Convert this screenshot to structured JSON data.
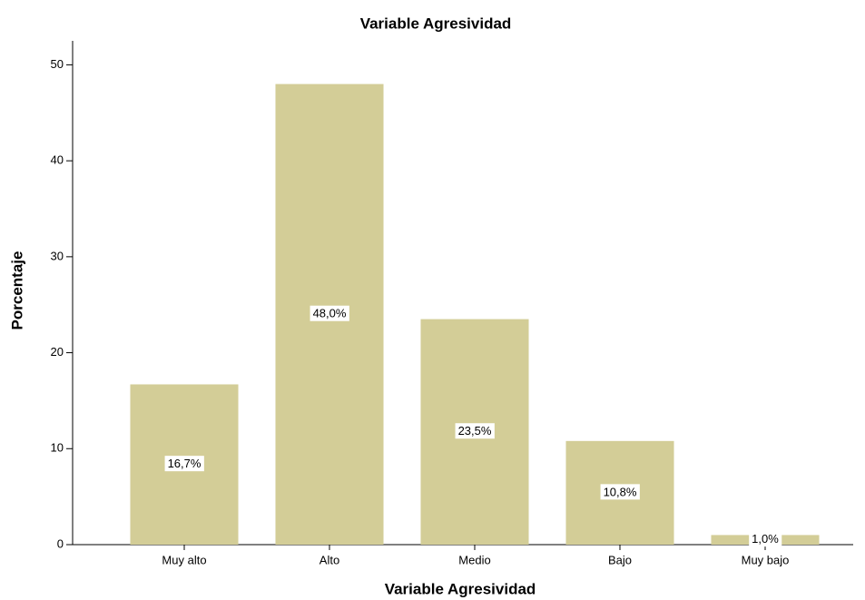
{
  "chart_data": {
    "type": "bar",
    "title": "Variable Agresividad",
    "x_label": "Variable Agresividad",
    "y_label": "Porcentaje",
    "categories": [
      "Muy alto",
      "Alto",
      "Medio",
      "Bajo",
      "Muy bajo"
    ],
    "values": [
      16.7,
      48.0,
      23.5,
      10.8,
      1.0
    ],
    "value_labels": [
      "16,7%",
      "48,0%",
      "23,5%",
      "10,8%",
      "1,0%"
    ],
    "color": "#d3cd97",
    "ylim": [
      0,
      52.5
    ],
    "yticks": [
      0,
      10,
      20,
      30,
      40,
      50
    ],
    "grid": false
  }
}
